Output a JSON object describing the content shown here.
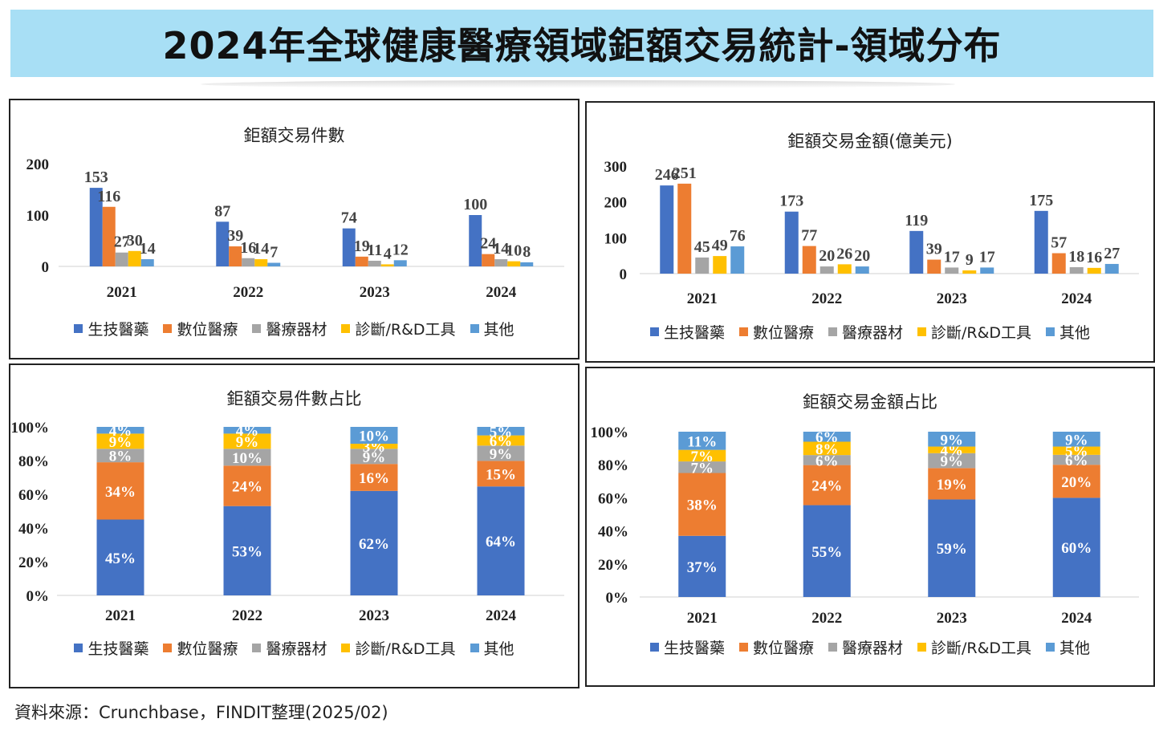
{
  "header": {
    "title": "2024年全球健康醫療領域鉅額交易統計-領域分布"
  },
  "source": "資料來源：Crunchbase，FINDIT整理(2025/02)",
  "legend": [
    {
      "label": "生技醫藥",
      "color": "#4472c4"
    },
    {
      "label": "數位醫療",
      "color": "#ed7d31"
    },
    {
      "label": "醫療器材",
      "color": "#a5a5a5"
    },
    {
      "label": "診斷/R&D工具",
      "color": "#ffc000"
    },
    {
      "label": "其他",
      "color": "#5b9bd5"
    }
  ],
  "chart_data": [
    {
      "id": "count",
      "type": "bar",
      "title": "鉅額交易件數",
      "categories": [
        "2021",
        "2022",
        "2023",
        "2024"
      ],
      "ylim": [
        0,
        200
      ],
      "yticks": [
        "0",
        "100",
        "200"
      ],
      "series": [
        {
          "name": "生技醫藥",
          "values": [
            153,
            87,
            74,
            100
          ]
        },
        {
          "name": "數位醫療",
          "values": [
            116,
            39,
            19,
            24
          ]
        },
        {
          "name": "醫療器材",
          "values": [
            27,
            16,
            11,
            14
          ]
        },
        {
          "name": "診斷/R&D工具",
          "values": [
            30,
            14,
            4,
            10
          ]
        },
        {
          "name": "其他",
          "values": [
            14,
            7,
            12,
            8
          ]
        }
      ],
      "legend_position": "bottom"
    },
    {
      "id": "amount",
      "type": "bar",
      "title": "鉅額交易金額(億美元)",
      "categories": [
        "2021",
        "2022",
        "2023",
        "2024"
      ],
      "ylim": [
        0,
        300
      ],
      "yticks": [
        "0",
        "100",
        "200",
        "300"
      ],
      "series": [
        {
          "name": "生技醫藥",
          "values": [
            246,
            173,
            119,
            175
          ]
        },
        {
          "name": "數位醫療",
          "values": [
            251,
            77,
            39,
            57
          ]
        },
        {
          "name": "醫療器材",
          "values": [
            45,
            20,
            17,
            18
          ]
        },
        {
          "name": "診斷/R&D工具",
          "values": [
            49,
            26,
            9,
            16
          ]
        },
        {
          "name": "其他",
          "values": [
            76,
            20,
            17,
            27
          ]
        }
      ],
      "legend_position": "bottom"
    },
    {
      "id": "count_share",
      "type": "stacked_bar",
      "title": "鉅額交易件數占比",
      "categories": [
        "2021",
        "2022",
        "2023",
        "2024"
      ],
      "ylim": [
        0,
        100
      ],
      "yticks": [
        "0%",
        "20%",
        "40%",
        "60%",
        "80%",
        "100%"
      ],
      "series": [
        {
          "name": "生技醫藥",
          "values": [
            45,
            53,
            62,
            64
          ],
          "labels": [
            "45%",
            "53%",
            "62%",
            "64%"
          ]
        },
        {
          "name": "數位醫療",
          "values": [
            34,
            24,
            16,
            15
          ],
          "labels": [
            "34%",
            "24%",
            "16%",
            "15%"
          ]
        },
        {
          "name": "醫療器材",
          "values": [
            8,
            10,
            9,
            9
          ],
          "labels": [
            "8%",
            "10%",
            "9%",
            "9%"
          ]
        },
        {
          "name": "診斷/R&D工具",
          "values": [
            9,
            9,
            3,
            6
          ],
          "labels": [
            "9%",
            "9%",
            "3%",
            "6%"
          ]
        },
        {
          "name": "其他",
          "values": [
            4,
            4,
            10,
            5
          ],
          "labels": [
            "4%",
            "4%",
            "10%",
            "5%"
          ]
        }
      ],
      "legend_position": "bottom"
    },
    {
      "id": "amount_share",
      "type": "stacked_bar",
      "title": "鉅額交易金額占比",
      "categories": [
        "2021",
        "2022",
        "2023",
        "2024"
      ],
      "ylim": [
        0,
        100
      ],
      "yticks": [
        "0%",
        "20%",
        "40%",
        "60%",
        "80%",
        "100%"
      ],
      "series": [
        {
          "name": "生技醫藥",
          "values": [
            37,
            55,
            59,
            60
          ],
          "labels": [
            "37%",
            "55%",
            "59%",
            "60%"
          ]
        },
        {
          "name": "數位醫療",
          "values": [
            38,
            24,
            19,
            20
          ],
          "labels": [
            "38%",
            "24%",
            "19%",
            "20%"
          ]
        },
        {
          "name": "醫療器材",
          "values": [
            7,
            6,
            9,
            6
          ],
          "labels": [
            "7%",
            "6%",
            "9%",
            "6%"
          ]
        },
        {
          "name": "診斷/R&D工具",
          "values": [
            7,
            8,
            4,
            5
          ],
          "labels": [
            "7%",
            "8%",
            "4%",
            "5%"
          ]
        },
        {
          "name": "其他",
          "values": [
            11,
            6,
            9,
            9
          ],
          "labels": [
            "11%",
            "6%",
            "9%",
            "9%"
          ]
        }
      ],
      "legend_position": "bottom"
    }
  ]
}
